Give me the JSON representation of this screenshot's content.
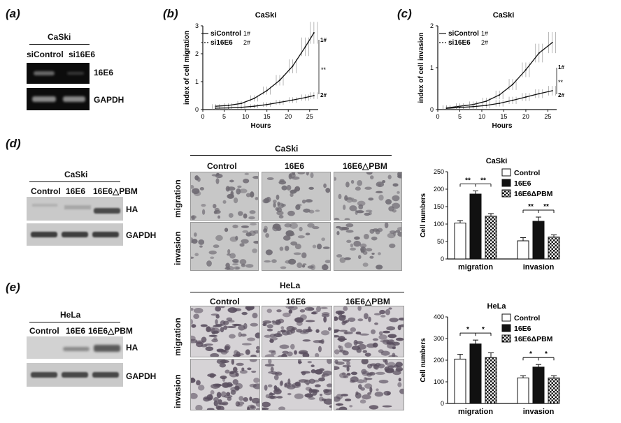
{
  "panel_a": {
    "label": "(a)",
    "cell_line": "CaSki",
    "lanes": [
      "siControl",
      "si16E6"
    ],
    "bands": [
      "16E6",
      "GAPDH"
    ]
  },
  "panel_b": {
    "label": "(b)",
    "title": "CaSki",
    "ylabel": "index of cell migration",
    "xlabel": "Hours",
    "legend": [
      {
        "name": "siControl",
        "tag": "1#"
      },
      {
        "name": "si16E6",
        "tag": "2#"
      }
    ],
    "sig": "**",
    "end_labels": [
      "1#",
      "2#"
    ]
  },
  "panel_c": {
    "label": "(c)",
    "title": "CaSki",
    "ylabel": "index of cell invasion",
    "xlabel": "Hours",
    "legend": [
      {
        "name": "siControl",
        "tag": "1#"
      },
      {
        "name": "si16E6",
        "tag": "2#"
      }
    ],
    "sig": "**",
    "end_labels": [
      "1#",
      "2#"
    ]
  },
  "panel_d": {
    "label": "(d)",
    "cell_line": "CaSki",
    "lanes": [
      "Control",
      "16E6",
      "16E6△PBM"
    ],
    "bands": [
      "HA",
      "GAPDH"
    ],
    "micro_title": "CaSki",
    "micro_cols": [
      "Control",
      "16E6",
      "16E6△PBM"
    ],
    "micro_rows": [
      "migration",
      "invasion"
    ]
  },
  "panel_e": {
    "label": "(e)",
    "cell_line": "HeLa",
    "lanes": [
      "Control",
      "16E6",
      "16E6△PBM"
    ],
    "bands": [
      "HA",
      "GAPDH"
    ],
    "micro_title": "HeLa",
    "micro_cols": [
      "Control",
      "16E6",
      "16E6△PBM"
    ],
    "micro_rows": [
      "migration",
      "invasion"
    ]
  },
  "chart_data": [
    {
      "type": "line",
      "title": "CaSki",
      "xlabel": "Hours",
      "ylabel": "index of cell migration",
      "xlim": [
        0,
        27
      ],
      "ylim": [
        0,
        3
      ],
      "xticks": [
        0,
        5,
        10,
        15,
        20,
        25
      ],
      "yticks": [
        0,
        1,
        2,
        3
      ],
      "series": [
        {
          "name": "siControl",
          "x": [
            3,
            6,
            9,
            12,
            15,
            18,
            21,
            24,
            26
          ],
          "y": [
            0.12,
            0.15,
            0.22,
            0.4,
            0.68,
            1.05,
            1.55,
            2.25,
            2.75
          ]
        },
        {
          "name": "si16E6",
          "x": [
            3,
            6,
            9,
            12,
            15,
            18,
            21,
            24,
            26
          ],
          "y": [
            0.05,
            0.06,
            0.08,
            0.12,
            0.18,
            0.26,
            0.34,
            0.43,
            0.5
          ]
        }
      ]
    },
    {
      "type": "line",
      "title": "CaSki",
      "xlabel": "Hours",
      "ylabel": "index of cell invasion",
      "xlim": [
        0,
        27
      ],
      "ylim": [
        0,
        2
      ],
      "xticks": [
        0,
        5,
        10,
        15,
        20,
        25
      ],
      "yticks": [
        0,
        1,
        2
      ],
      "series": [
        {
          "name": "siControl",
          "x": [
            2,
            5,
            8,
            11,
            14,
            17,
            20,
            23,
            26
          ],
          "y": [
            0.04,
            0.08,
            0.12,
            0.2,
            0.35,
            0.6,
            0.95,
            1.35,
            1.6
          ]
        },
        {
          "name": "si16E6",
          "x": [
            2,
            5,
            8,
            11,
            14,
            17,
            20,
            23,
            26
          ],
          "y": [
            0.03,
            0.05,
            0.07,
            0.1,
            0.15,
            0.22,
            0.3,
            0.38,
            0.45
          ]
        }
      ]
    },
    {
      "type": "bar",
      "title": "CaSki",
      "ylabel": "Cell numbers",
      "categories": [
        "migration",
        "invasion"
      ],
      "ylim": [
        0,
        250
      ],
      "yticks": [
        0,
        50,
        100,
        150,
        200,
        250
      ],
      "series": [
        {
          "name": "Control",
          "values": [
            103,
            52
          ],
          "errors": [
            7,
            9
          ]
        },
        {
          "name": "16E6",
          "values": [
            186,
            108
          ],
          "errors": [
            9,
            12
          ]
        },
        {
          "name": "16E6ΔPBM",
          "values": [
            123,
            63
          ],
          "errors": [
            7,
            6
          ]
        }
      ],
      "sig_labels": [
        "**",
        "**",
        "**",
        "**"
      ]
    },
    {
      "type": "bar",
      "title": "HeLa",
      "ylabel": "Cell numbers",
      "categories": [
        "migration",
        "invasion"
      ],
      "ylim": [
        0,
        400
      ],
      "yticks": [
        0,
        100,
        200,
        300,
        400
      ],
      "series": [
        {
          "name": "Control",
          "values": [
            205,
            118
          ],
          "errors": [
            22,
            10
          ]
        },
        {
          "name": "16E6",
          "values": [
            275,
            168
          ],
          "errors": [
            18,
            12
          ]
        },
        {
          "name": "16E6ΔPBM",
          "values": [
            212,
            118
          ],
          "errors": [
            22,
            10
          ]
        }
      ],
      "sig_labels": [
        "*",
        "*",
        "*",
        "*"
      ]
    }
  ]
}
